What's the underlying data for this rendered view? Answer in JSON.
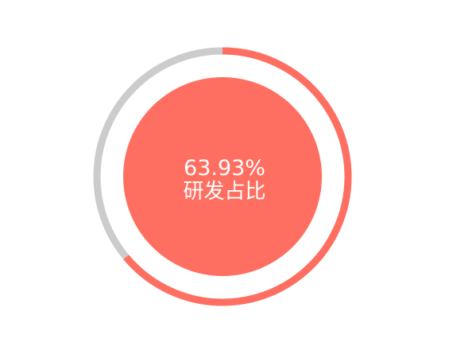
{
  "chart_data": {
    "type": "pie",
    "value_percent": 63.93,
    "value_label": "63.93%",
    "center_label": "研发占比",
    "colors": {
      "value": "#ff6f61",
      "remainder": "#cccccc",
      "inner": "#ff6f61",
      "text": "#ffffff"
    }
  }
}
